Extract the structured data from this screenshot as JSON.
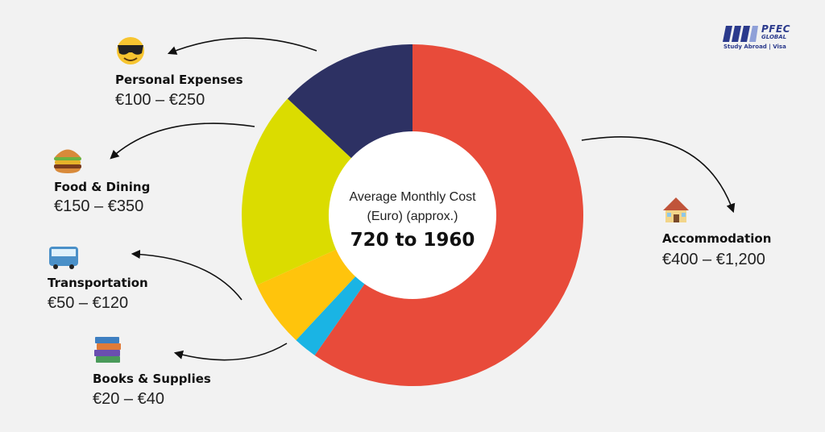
{
  "chart_data": {
    "type": "pie",
    "subtype": "donut",
    "center_label": {
      "line1": "Average Monthly Cost",
      "line2": "(Euro) (approx.)",
      "value": "720 to 1960"
    },
    "categories": [
      "Accommodation",
      "Books & Supplies",
      "Transportation",
      "Food & Dining",
      "Personal Expenses"
    ],
    "ranges": [
      "€400 – €1,200",
      "€20 – €40",
      "€50 – €120",
      "€150 – €350",
      "€100 – €250"
    ],
    "values": [
      800,
      30,
      85,
      250,
      175
    ],
    "colors": [
      "#e84b3a",
      "#1ab4e4",
      "#ffc40c",
      "#dbdc00",
      "#2d3163"
    ],
    "icons": [
      "house-icon",
      "books-icon",
      "bus-icon",
      "burger-icon",
      "sunglasses-face-icon"
    ],
    "legend_position": "around"
  },
  "brand": {
    "name": "PFEC",
    "sub": "GLOBAL",
    "tagline": "Study Abroad | Visa",
    "color": "#2b3a8c"
  }
}
